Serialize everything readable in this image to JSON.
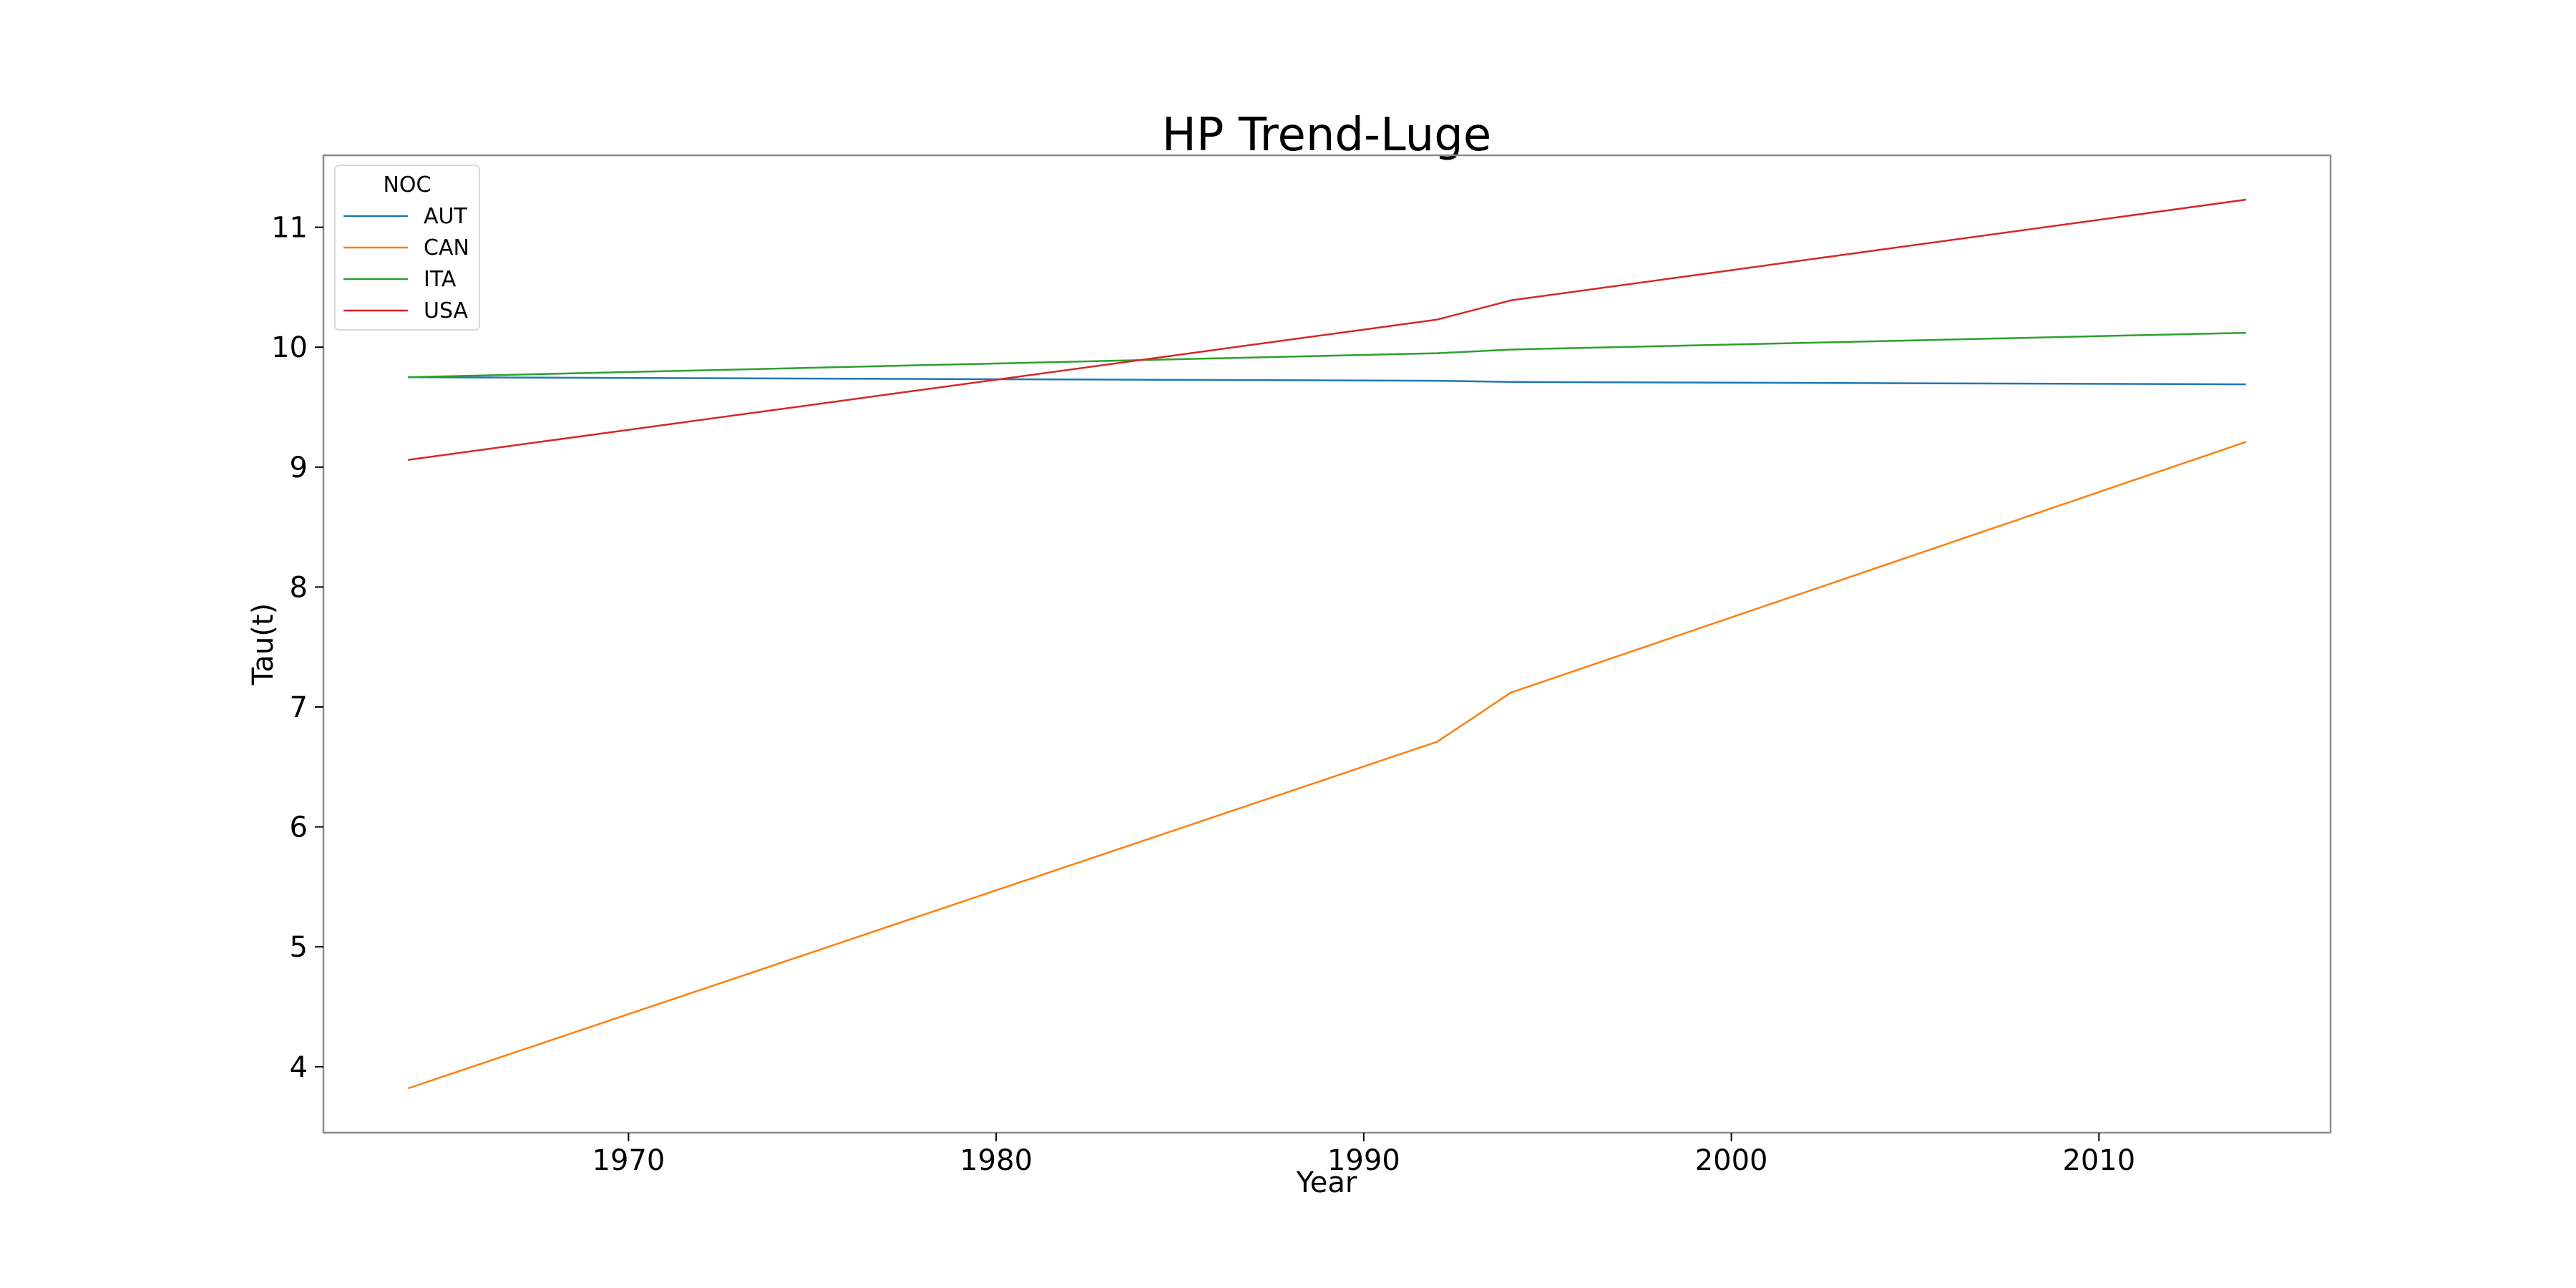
{
  "chart_data": {
    "type": "line",
    "title": "HP Trend-Luge",
    "xlabel": "Year",
    "ylabel": "Tau(t)",
    "xlim": [
      1961.7,
      2016.3
    ],
    "ylim": [
      3.45,
      11.6
    ],
    "xticks": [
      1970,
      1980,
      1990,
      2000,
      2010
    ],
    "yticks": [
      4,
      5,
      6,
      7,
      8,
      9,
      10,
      11
    ],
    "grid": false,
    "legend": {
      "title": "NOC",
      "placement": "upper-left"
    },
    "series": [
      {
        "name": "AUT",
        "color": "#1f77b4",
        "x": [
          1964,
          1992,
          1994,
          2014
        ],
        "y": [
          9.75,
          9.72,
          9.71,
          9.69
        ]
      },
      {
        "name": "CAN",
        "color": "#ff7f0e",
        "x": [
          1964,
          1992,
          1994,
          2014
        ],
        "y": [
          3.82,
          6.71,
          7.12,
          9.21
        ]
      },
      {
        "name": "ITA",
        "color": "#2ca02c",
        "x": [
          1964,
          1992,
          1994,
          2014
        ],
        "y": [
          9.75,
          9.95,
          9.98,
          10.12
        ]
      },
      {
        "name": "USA",
        "color": "#d62728",
        "x": [
          1964,
          1992,
          1994,
          2014
        ],
        "y": [
          9.06,
          10.23,
          10.39,
          11.23
        ]
      }
    ]
  }
}
